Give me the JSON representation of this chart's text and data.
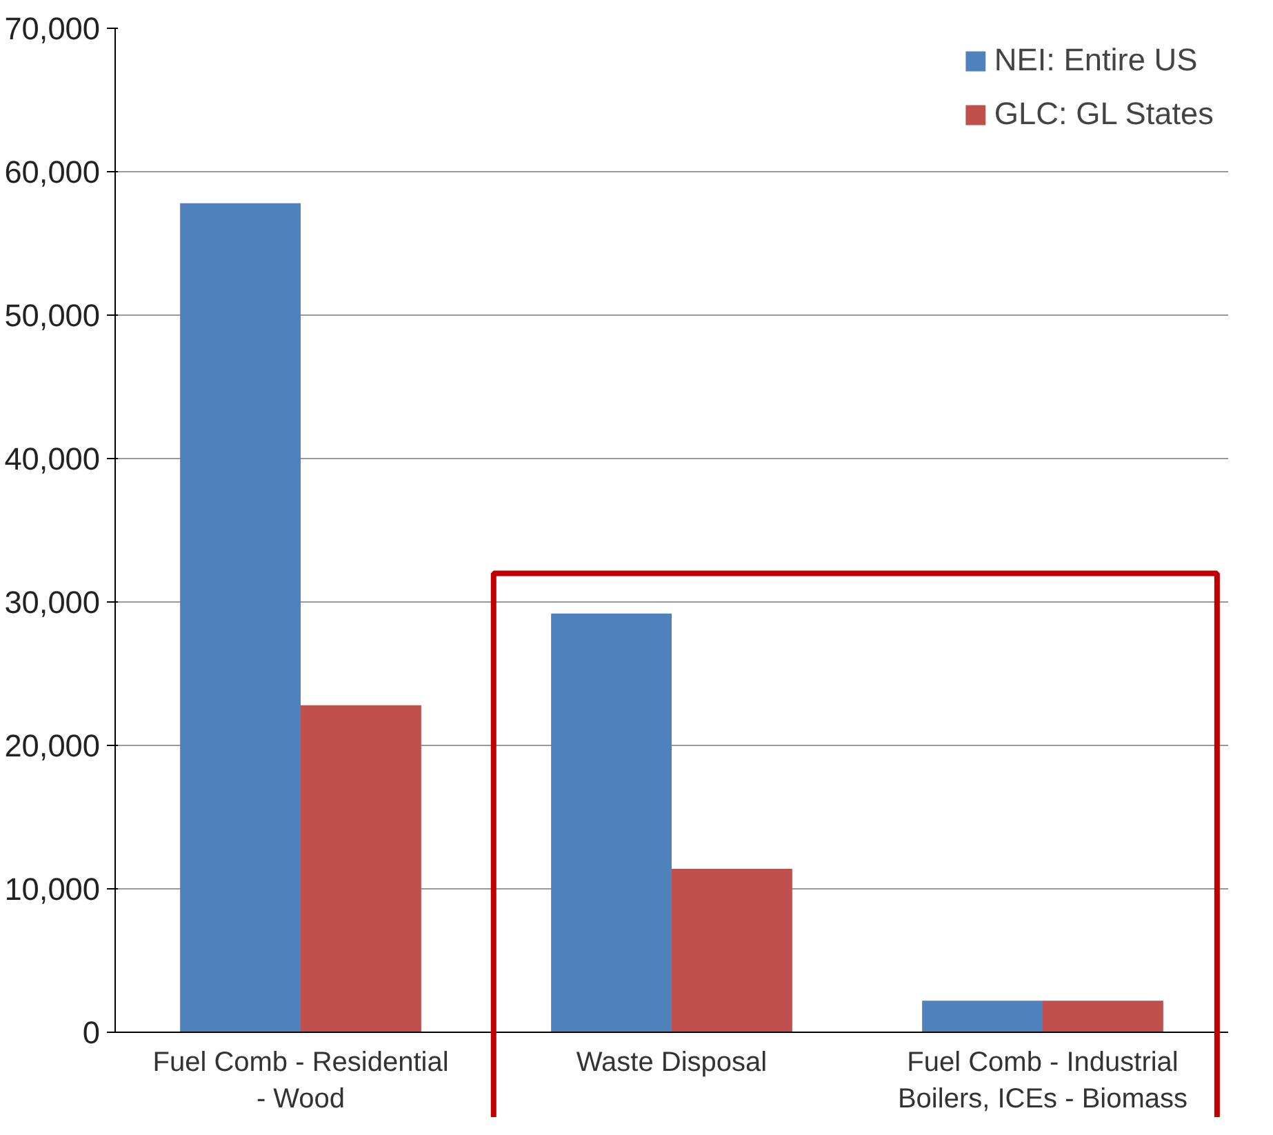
{
  "chart_data": {
    "type": "bar",
    "categories": [
      "Fuel Comb - Residential\n- Wood",
      "Waste Disposal",
      "Fuel Comb - Industrial\nBoilers, ICEs - Biomass"
    ],
    "series": [
      {
        "name": "NEI: Entire US",
        "color": "#4f81bd",
        "values": [
          57800,
          29200,
          2200
        ]
      },
      {
        "name": "GLC: GL States",
        "color": "#c0504d",
        "values": [
          22800,
          11400,
          2200
        ]
      }
    ],
    "ylim": [
      0,
      70000
    ],
    "yticks": [
      {
        "value": 0,
        "label": "0"
      },
      {
        "value": 10000,
        "label": "10,000"
      },
      {
        "value": 20000,
        "label": "20,000"
      },
      {
        "value": 30000,
        "label": "30,000"
      },
      {
        "value": 40000,
        "label": "40,000"
      },
      {
        "value": 50000,
        "label": "50,000"
      },
      {
        "value": 60000,
        "label": "60,000"
      },
      {
        "value": 70000,
        "label": "70,000"
      }
    ],
    "grid": "y",
    "legend": "top right"
  }
}
